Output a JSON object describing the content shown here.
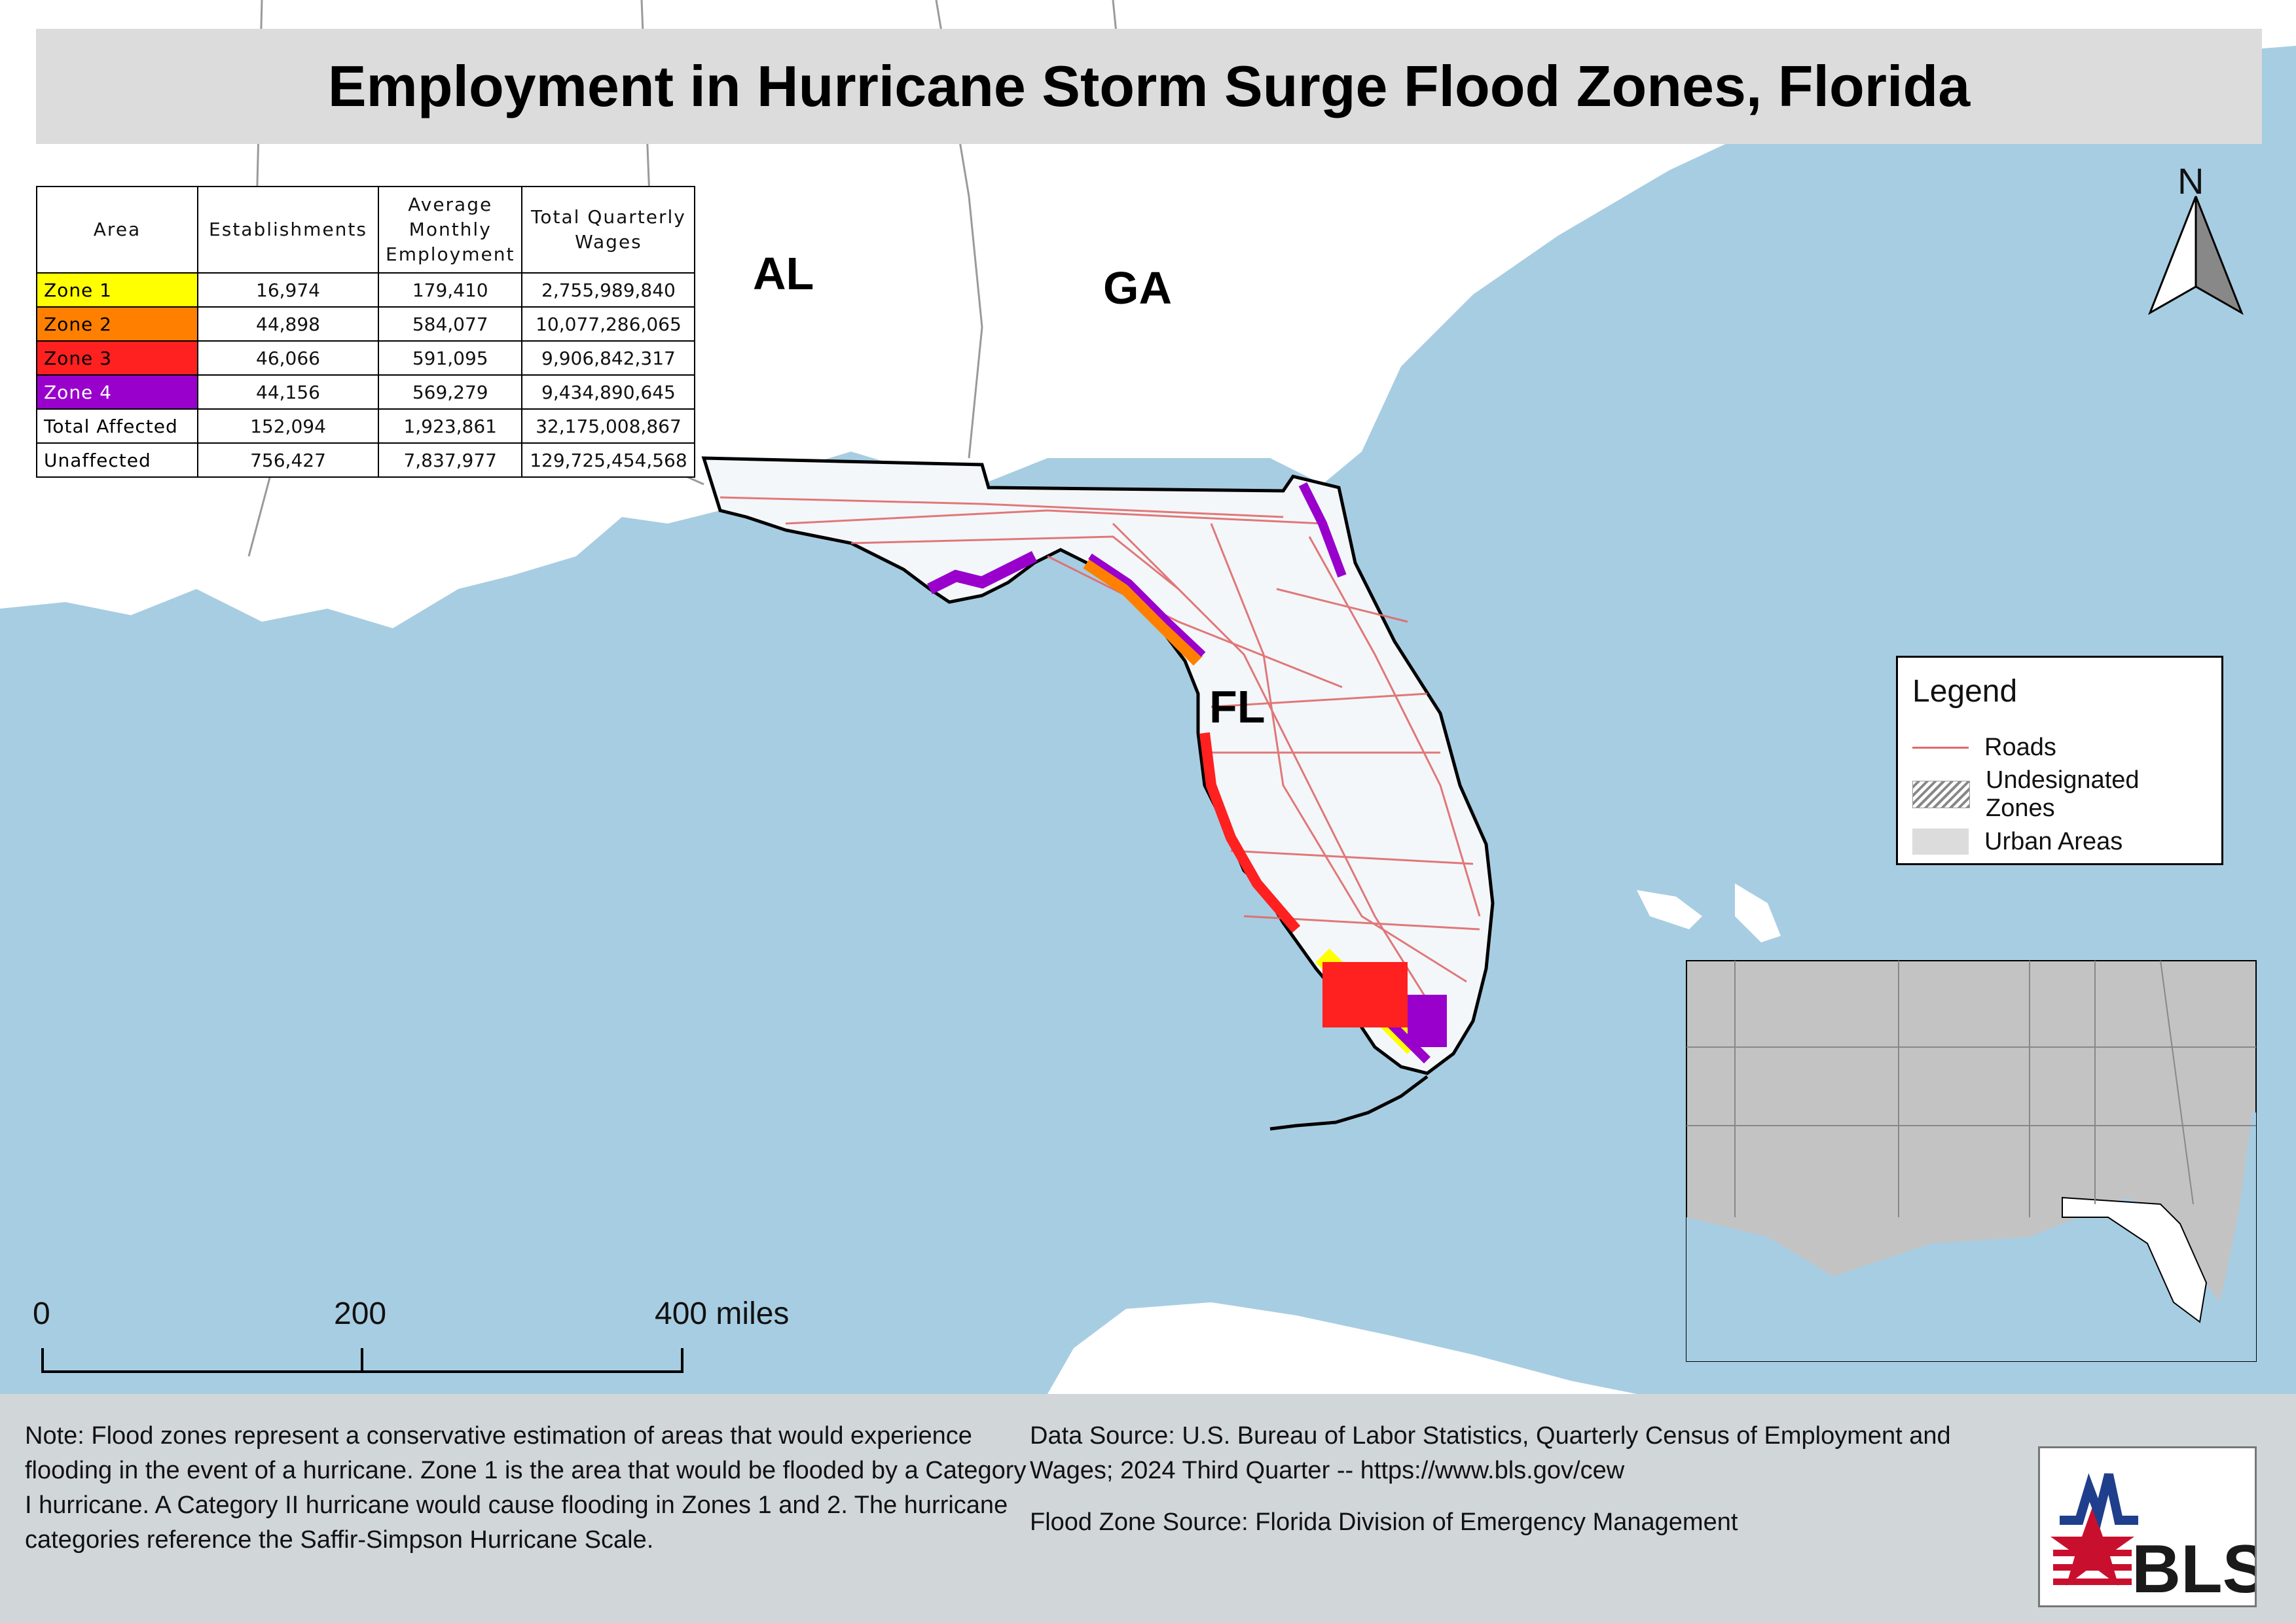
{
  "title": "Employment in Hurricane Storm Surge Flood Zones, Florida",
  "table": {
    "headers": [
      "Area",
      "Establishments",
      "Average Monthly Employment",
      "Total Quarterly Wages"
    ],
    "rows": [
      {
        "area": "Zone 1",
        "establishments": "16,974",
        "employment": "179,410",
        "wages": "2,755,989,840",
        "color": "#ffff00",
        "text_color": "#000000"
      },
      {
        "area": "Zone 2",
        "establishments": "44,898",
        "employment": "584,077",
        "wages": "10,077,286,065",
        "color": "#ff8000",
        "text_color": "#000000"
      },
      {
        "area": "Zone 3",
        "establishments": "46,066",
        "employment": "591,095",
        "wages": "9,906,842,317",
        "color": "#ff2020",
        "text_color": "#000000"
      },
      {
        "area": "Zone 4",
        "establishments": "44,156",
        "employment": "569,279",
        "wages": "9,434,890,645",
        "color": "#9900cc",
        "text_color": "#ffffff"
      },
      {
        "area": "Total Affected",
        "establishments": "152,094",
        "employment": "1,923,861",
        "wages": "32,175,008,867",
        "color": "#ffffff",
        "text_color": "#000000"
      },
      {
        "area": "Unaffected",
        "establishments": "756,427",
        "employment": "7,837,977",
        "wages": "129,725,454,568",
        "color": "#ffffff",
        "text_color": "#000000"
      }
    ]
  },
  "state_labels": {
    "al": "AL",
    "ga": "GA",
    "fl": "FL"
  },
  "legend": {
    "title": "Legend",
    "items": [
      {
        "label": "Roads",
        "symbol": "line",
        "color": "#e06a6a"
      },
      {
        "label": "Undesignated Zones",
        "symbol": "hatch"
      },
      {
        "label": "Urban Areas",
        "symbol": "fill",
        "color": "#dcdcdc"
      }
    ]
  },
  "north_arrow": "N",
  "scale_bar": {
    "labels": [
      "0",
      "200",
      "400 miles"
    ]
  },
  "footer": {
    "note": "Note: Flood zones represent a conservative estimation of areas that would experience flooding in the event of a hurricane. Zone 1 is the area that would be flooded by a Category I hurricane. A Category II hurricane would cause flooding in Zones 1 and 2. The hurricane categories reference the Saffir-Simpson Hurricane Scale.",
    "data_source": "Data Source: U.S. Bureau of Labor Statistics, Quarterly Census of Employment and Wages; 2024 Third Quarter -- https://www.bls.gov/cew",
    "flood_source": "Flood Zone Source: Florida Division of Emergency Management"
  },
  "logo": {
    "text": "BLS"
  },
  "colors": {
    "water": "#a7cde2",
    "land": "#ffffff",
    "florida_fill": "#f3f7fa",
    "state_border": "#9a9a9a",
    "road": "#e06a6a",
    "inset_land": "#c3c3c3",
    "inset_water": "#a7cde2"
  }
}
